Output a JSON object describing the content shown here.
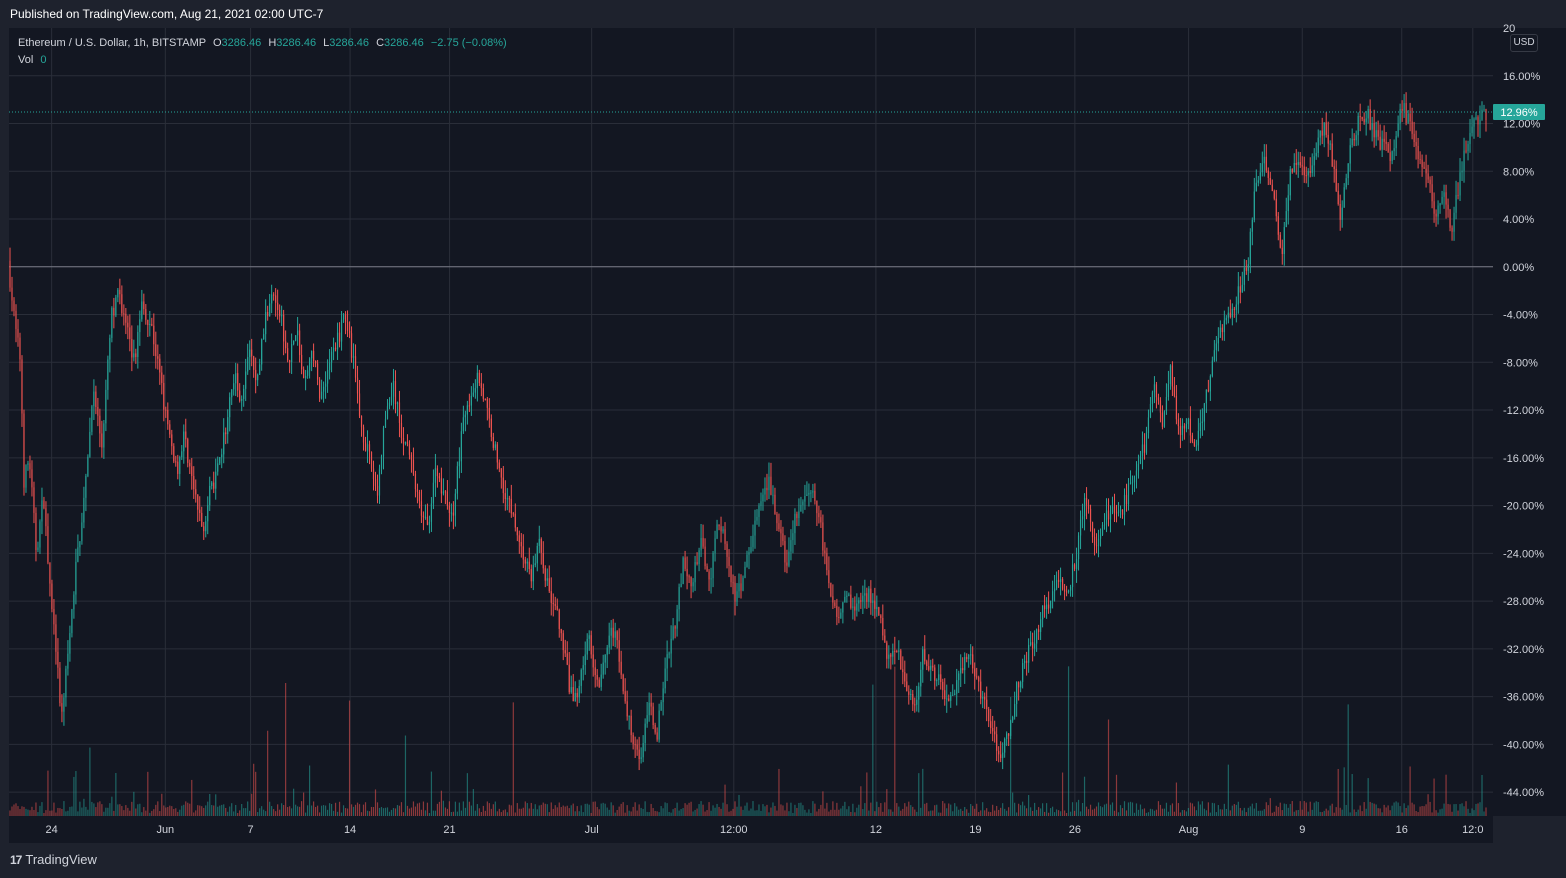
{
  "header": {
    "publish_text": "Published on TradingView.com, Aug 21, 2021 02:00 UTC-7"
  },
  "legend": {
    "symbol": "Ethereum / U.S. Dollar, 1h, BITSTAMP",
    "o_label": "O",
    "o_value": "3286.46",
    "h_label": "H",
    "h_value": "3286.46",
    "l_label": "L",
    "l_value": "3286.46",
    "c_label": "C",
    "c_value": "3286.46",
    "change": "−2.75 (−0.08%)",
    "vol_label": "Vol",
    "vol_value": "0"
  },
  "currency_button": "USD",
  "last_value_label": "12.96%",
  "footer": {
    "logo_mark": "17",
    "logo_text": "TradingView"
  },
  "colors": {
    "up": "#26a69a",
    "down": "#ef5350",
    "background": "#131722",
    "frame": "#1e222d",
    "grid": "#2a2e39",
    "text": "#d1d4dc",
    "baseline": "#787b86"
  },
  "chart_data": {
    "type": "candlestick",
    "symbol": "Ethereum / U.S. Dollar",
    "interval": "1h",
    "exchange": "BITSTAMP",
    "scale": "percent",
    "ylim": [
      -46,
      20
    ],
    "y_ticks": [
      "16.00%",
      "12.00%",
      "8.00%",
      "4.00%",
      "0.00%",
      "-4.00%",
      "-8.00%",
      "-12.00%",
      "-16.00%",
      "-20.00%",
      "-24.00%",
      "-28.00%",
      "-32.00%",
      "-36.00%",
      "-40.00%",
      "-44.00%"
    ],
    "y_tick_values": [
      16,
      12,
      8,
      4,
      0,
      -4,
      -8,
      -12,
      -16,
      -20,
      -24,
      -28,
      -32,
      -36,
      -40,
      -44
    ],
    "y_top_partial_label": "20",
    "x_ticks": [
      "24",
      "Jun",
      "7",
      "14",
      "21",
      "Jul",
      "12:00",
      "12",
      "19",
      "26",
      "Aug",
      "9",
      "16",
      "12:0"
    ],
    "x_tick_days": [
      3,
      11,
      17,
      24,
      31,
      41,
      51,
      61,
      68,
      75,
      83,
      91,
      98,
      103
    ],
    "x_days_total": 104,
    "last_value": 12.96,
    "path_points": [
      [
        0,
        0.5
      ],
      [
        0.5,
        -5
      ],
      [
        0.9,
        -8
      ],
      [
        1.1,
        -18
      ],
      [
        1.5,
        -16
      ],
      [
        2,
        -24
      ],
      [
        2.5,
        -19
      ],
      [
        3.0,
        -28
      ],
      [
        3.4,
        -32
      ],
      [
        3.7,
        -38
      ],
      [
        4.2,
        -33
      ],
      [
        4.8,
        -25
      ],
      [
        5.5,
        -18
      ],
      [
        6.0,
        -10
      ],
      [
        6.6,
        -15
      ],
      [
        7.3,
        -4
      ],
      [
        7.8,
        -2
      ],
      [
        8.3,
        -5
      ],
      [
        8.9,
        -8
      ],
      [
        9.4,
        -3
      ],
      [
        10.1,
        -5
      ],
      [
        10.8,
        -10
      ],
      [
        11.3,
        -14
      ],
      [
        11.9,
        -17
      ],
      [
        12.4,
        -14
      ],
      [
        13.1,
        -19
      ],
      [
        13.7,
        -22
      ],
      [
        14.2,
        -19
      ],
      [
        14.8,
        -17
      ],
      [
        15.4,
        -13
      ],
      [
        15.9,
        -9
      ],
      [
        16.4,
        -11
      ],
      [
        17.0,
        -7
      ],
      [
        17.5,
        -10
      ],
      [
        18.0,
        -5
      ],
      [
        18.7,
        -2
      ],
      [
        19.2,
        -4
      ],
      [
        19.7,
        -8
      ],
      [
        20.3,
        -5
      ],
      [
        20.8,
        -10
      ],
      [
        21.4,
        -7
      ],
      [
        22.0,
        -11
      ],
      [
        22.6,
        -8
      ],
      [
        23.2,
        -6
      ],
      [
        23.8,
        -4
      ],
      [
        24.3,
        -8
      ],
      [
        24.8,
        -13
      ],
      [
        25.4,
        -16
      ],
      [
        26.0,
        -19
      ],
      [
        26.5,
        -13
      ],
      [
        27.1,
        -10
      ],
      [
        27.7,
        -14
      ],
      [
        28.3,
        -16
      ],
      [
        28.9,
        -20
      ],
      [
        29.5,
        -22
      ],
      [
        30.1,
        -17
      ],
      [
        30.7,
        -19
      ],
      [
        31.3,
        -21
      ],
      [
        31.9,
        -14
      ],
      [
        32.5,
        -11
      ],
      [
        33.1,
        -9
      ],
      [
        33.7,
        -12
      ],
      [
        34.4,
        -16
      ],
      [
        35.0,
        -19
      ],
      [
        35.6,
        -21
      ],
      [
        36.2,
        -24
      ],
      [
        36.8,
        -26
      ],
      [
        37.4,
        -23
      ],
      [
        38.0,
        -27
      ],
      [
        38.6,
        -29
      ],
      [
        39.2,
        -33
      ],
      [
        39.8,
        -37
      ],
      [
        40.3,
        -34
      ],
      [
        40.9,
        -31
      ],
      [
        41.5,
        -35
      ],
      [
        42.1,
        -32
      ],
      [
        42.7,
        -30
      ],
      [
        43.3,
        -36
      ],
      [
        43.9,
        -39
      ],
      [
        44.5,
        -41
      ],
      [
        45.1,
        -37
      ],
      [
        45.7,
        -39
      ],
      [
        46.3,
        -33
      ],
      [
        46.9,
        -30
      ],
      [
        47.5,
        -25
      ],
      [
        48.1,
        -27
      ],
      [
        48.7,
        -23
      ],
      [
        49.4,
        -26
      ],
      [
        50.0,
        -21
      ],
      [
        50.6,
        -24
      ],
      [
        51.2,
        -28
      ],
      [
        51.8,
        -26
      ],
      [
        52.4,
        -22
      ],
      [
        53.0,
        -20
      ],
      [
        53.6,
        -18
      ],
      [
        54.2,
        -22
      ],
      [
        54.8,
        -25
      ],
      [
        55.4,
        -21
      ],
      [
        56.0,
        -20
      ],
      [
        56.6,
        -18
      ],
      [
        57.2,
        -22
      ],
      [
        57.8,
        -27
      ],
      [
        58.4,
        -29
      ],
      [
        59.0,
        -27
      ],
      [
        59.6,
        -29
      ],
      [
        60.2,
        -27
      ],
      [
        60.8,
        -28
      ],
      [
        61.4,
        -30
      ],
      [
        62.0,
        -33
      ],
      [
        62.6,
        -32
      ],
      [
        63.2,
        -35
      ],
      [
        63.8,
        -37
      ],
      [
        64.4,
        -32
      ],
      [
        65.0,
        -34
      ],
      [
        65.6,
        -35
      ],
      [
        66.2,
        -37
      ],
      [
        66.8,
        -35
      ],
      [
        67.4,
        -32
      ],
      [
        68.0,
        -34
      ],
      [
        68.6,
        -36
      ],
      [
        69.2,
        -39
      ],
      [
        69.8,
        -41
      ],
      [
        70.4,
        -39
      ],
      [
        71.0,
        -35
      ],
      [
        71.6,
        -33
      ],
      [
        72.2,
        -31
      ],
      [
        72.8,
        -29
      ],
      [
        73.4,
        -28
      ],
      [
        74.0,
        -26
      ],
      [
        74.6,
        -27
      ],
      [
        75.2,
        -24
      ],
      [
        75.8,
        -19
      ],
      [
        76.4,
        -23
      ],
      [
        77.0,
        -22
      ],
      [
        77.6,
        -20
      ],
      [
        78.2,
        -21
      ],
      [
        78.8,
        -19
      ],
      [
        79.4,
        -17
      ],
      [
        80.0,
        -15
      ],
      [
        80.6,
        -10
      ],
      [
        81.2,
        -13
      ],
      [
        81.8,
        -8
      ],
      [
        82.4,
        -14
      ],
      [
        83.0,
        -13
      ],
      [
        83.6,
        -15
      ],
      [
        84.2,
        -12
      ],
      [
        84.8,
        -7
      ],
      [
        85.4,
        -5
      ],
      [
        86.0,
        -4
      ],
      [
        86.6,
        -2
      ],
      [
        87.2,
        0
      ],
      [
        87.8,
        7
      ],
      [
        88.4,
        9
      ],
      [
        89.0,
        6
      ],
      [
        89.6,
        1
      ],
      [
        90.2,
        8
      ],
      [
        90.8,
        9
      ],
      [
        91.4,
        7
      ],
      [
        92.0,
        10
      ],
      [
        92.6,
        12
      ],
      [
        93.2,
        9
      ],
      [
        93.8,
        4
      ],
      [
        94.4,
        10
      ],
      [
        95.0,
        12
      ],
      [
        95.6,
        13
      ],
      [
        96.2,
        11
      ],
      [
        96.8,
        10
      ],
      [
        97.4,
        9
      ],
      [
        98.0,
        14
      ],
      [
        98.6,
        12
      ],
      [
        99.2,
        9
      ],
      [
        99.8,
        8
      ],
      [
        100.4,
        4
      ],
      [
        101.0,
        6
      ],
      [
        101.6,
        3
      ],
      [
        102.2,
        8
      ],
      [
        102.8,
        11
      ],
      [
        103.4,
        12.5
      ],
      [
        104.0,
        12.96
      ]
    ],
    "volume_max_label": ""
  }
}
